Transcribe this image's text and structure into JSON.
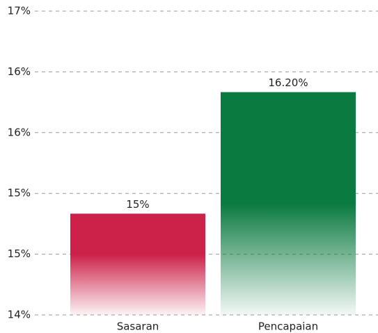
{
  "chart_data": {
    "type": "bar",
    "categories": [
      "Sasaran",
      "Pencapaian"
    ],
    "values": [
      15,
      16.2
    ],
    "value_labels": [
      "15%",
      "16.20%"
    ],
    "colors": [
      "#cc2149",
      "#0a7a40"
    ],
    "ylim": [
      14,
      17
    ],
    "yticks": [
      {
        "value": 14,
        "label": "14%"
      },
      {
        "value": 14.6,
        "label": "15%"
      },
      {
        "value": 15.2,
        "label": "15%"
      },
      {
        "value": 15.8,
        "label": "16%"
      },
      {
        "value": 16.4,
        "label": "16%"
      },
      {
        "value": 17,
        "label": "17%"
      }
    ],
    "grid": true
  }
}
